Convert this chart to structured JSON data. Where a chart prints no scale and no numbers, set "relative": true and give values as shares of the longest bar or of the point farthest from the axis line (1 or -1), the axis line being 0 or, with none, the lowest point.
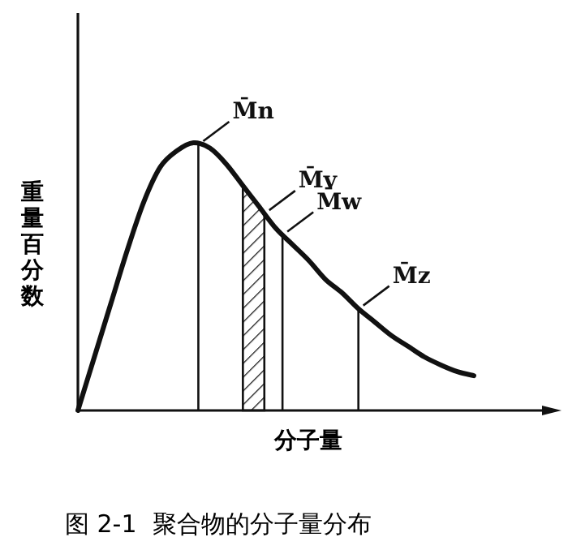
{
  "chart_data": {
    "type": "line",
    "relative": true,
    "ylabel": "重量百分数",
    "xlabel": "分子量",
    "categories": [
      null,
      null,
      null,
      null,
      null,
      null,
      null,
      null,
      null,
      null,
      null,
      null,
      null,
      null,
      null,
      null,
      null,
      null,
      null,
      null,
      null,
      null,
      null,
      null,
      null
    ],
    "series": [
      {
        "color": "#111111",
        "values": [
          0,
          0.2,
          0.4,
          0.6,
          0.78,
          0.91,
          0.97,
          1.0,
          0.98,
          0.92,
          0.84,
          0.76,
          0.68,
          0.62,
          0.56,
          0.49,
          0.44,
          0.38,
          0.33,
          0.28,
          0.24,
          0.2,
          0.17,
          0.145,
          0.13
        ]
      }
    ],
    "annotations": [
      "M̄n",
      "M̄v",
      "M̄w",
      "M̄z",
      "图 2-1  聚合物的分子量分布"
    ]
  }
}
